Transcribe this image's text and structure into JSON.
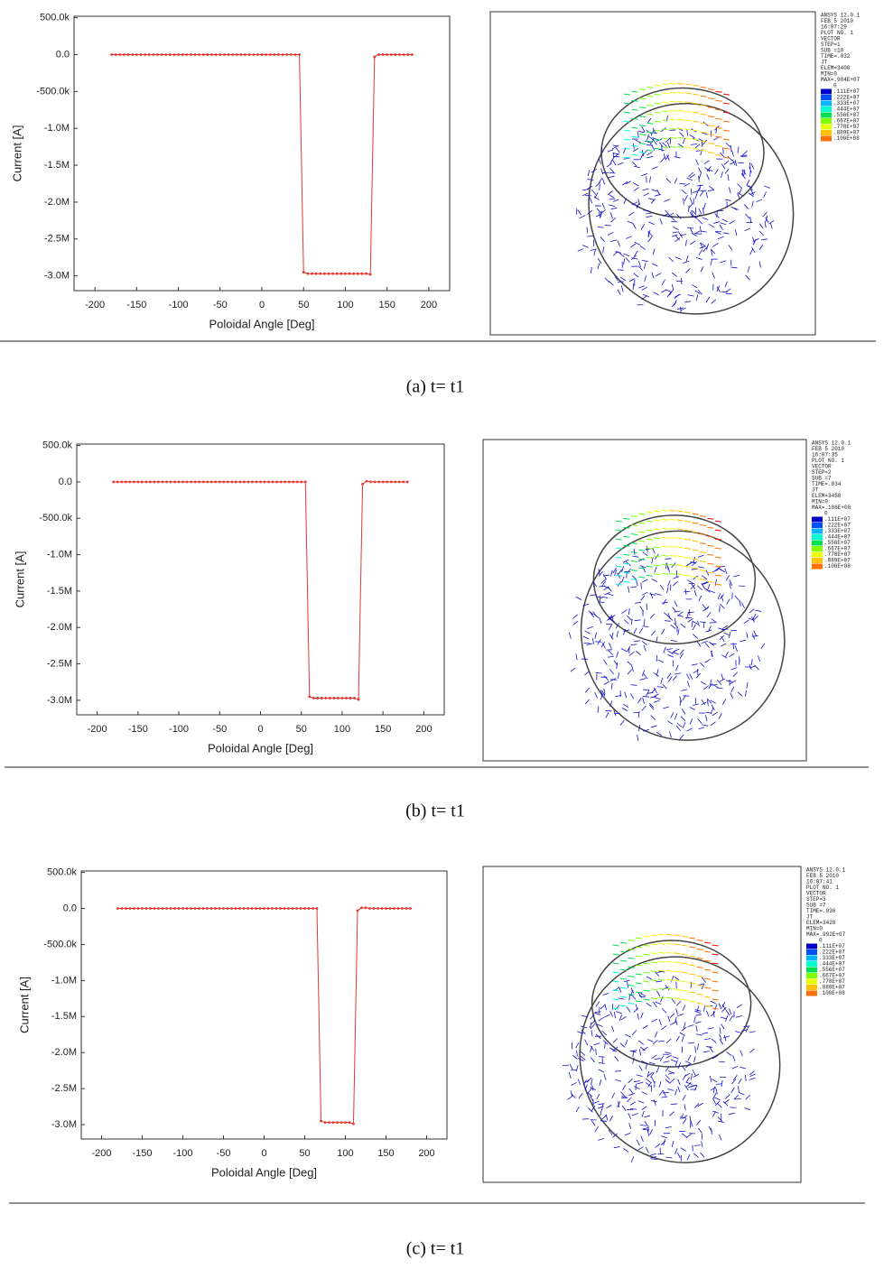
{
  "chart_data": [
    {
      "type": "line",
      "ylabel": "Current [A]",
      "xlabel": "Poloidal Angle [Deg]",
      "color": "#e8352f",
      "xlim": [
        -225,
        225
      ],
      "xticks": [
        -200,
        -150,
        -100,
        -50,
        0,
        50,
        100,
        150,
        200
      ],
      "ylim": [
        -3200000,
        520000
      ],
      "yticks": [
        {
          "value": 500000,
          "label": "500.0k"
        },
        {
          "value": 0,
          "label": "0.0"
        },
        {
          "value": -500000,
          "label": "-500.0k"
        },
        {
          "value": -1000000,
          "label": "-1.0M"
        },
        {
          "value": -1500000,
          "label": "-1.5M"
        },
        {
          "value": -2000000,
          "label": "-2.0M"
        },
        {
          "value": -2500000,
          "label": "-2.5M"
        },
        {
          "value": -3000000,
          "label": "-3.0M"
        }
      ],
      "x": [
        -180,
        -175,
        -170,
        -165,
        -160,
        -155,
        -150,
        -145,
        -140,
        -135,
        -130,
        -125,
        -120,
        -115,
        -110,
        -105,
        -100,
        -95,
        -90,
        -85,
        -80,
        -75,
        -70,
        -65,
        -60,
        -55,
        -50,
        -45,
        -40,
        -35,
        -30,
        -25,
        -20,
        -15,
        -10,
        -5,
        0,
        5,
        10,
        15,
        20,
        25,
        30,
        35,
        40,
        45,
        50,
        55,
        60,
        65,
        70,
        75,
        80,
        85,
        90,
        95,
        100,
        105,
        110,
        115,
        120,
        125,
        130,
        135,
        140,
        145,
        150,
        155,
        160,
        165,
        170,
        175,
        180
      ],
      "values": [
        0,
        0,
        0,
        0,
        0,
        0,
        0,
        0,
        0,
        0,
        0,
        0,
        0,
        0,
        0,
        0,
        0,
        0,
        0,
        0,
        0,
        0,
        0,
        0,
        0,
        0,
        0,
        0,
        0,
        0,
        0,
        0,
        0,
        0,
        0,
        0,
        0,
        0,
        0,
        0,
        0,
        0,
        0,
        0,
        0,
        0,
        -2950000,
        -2970000,
        -2970000,
        -2970000,
        -2970000,
        -2970000,
        -2970000,
        -2970000,
        -2970000,
        -2970000,
        -2970000,
        -2970000,
        -2970000,
        -2970000,
        -2970000,
        -2970000,
        -2980000,
        -30000,
        0,
        0,
        0,
        0,
        0,
        0,
        0,
        0,
        0
      ]
    },
    {
      "type": "line",
      "ylabel": "Current [A]",
      "xlabel": "Poloidal Angle [Deg]",
      "color": "#e8352f",
      "xlim": [
        -225,
        225
      ],
      "xticks": [
        -200,
        -150,
        -100,
        -50,
        0,
        50,
        100,
        150,
        200
      ],
      "ylim": [
        -3200000,
        520000
      ],
      "yticks": [
        {
          "value": 500000,
          "label": "500.0k"
        },
        {
          "value": 0,
          "label": "0.0"
        },
        {
          "value": -500000,
          "label": "-500.0k"
        },
        {
          "value": -1000000,
          "label": "-1.0M"
        },
        {
          "value": -1500000,
          "label": "-1.5M"
        },
        {
          "value": -2000000,
          "label": "-2.0M"
        },
        {
          "value": -2500000,
          "label": "-2.5M"
        },
        {
          "value": -3000000,
          "label": "-3.0M"
        }
      ],
      "x": [
        -180,
        -175,
        -170,
        -165,
        -160,
        -155,
        -150,
        -145,
        -140,
        -135,
        -130,
        -125,
        -120,
        -115,
        -110,
        -105,
        -100,
        -95,
        -90,
        -85,
        -80,
        -75,
        -70,
        -65,
        -60,
        -55,
        -50,
        -45,
        -40,
        -35,
        -30,
        -25,
        -20,
        -15,
        -10,
        -5,
        0,
        5,
        10,
        15,
        20,
        25,
        30,
        35,
        40,
        45,
        50,
        55,
        60,
        65,
        70,
        75,
        80,
        85,
        90,
        95,
        100,
        105,
        110,
        115,
        120,
        125,
        130,
        135,
        140,
        145,
        150,
        155,
        160,
        165,
        170,
        175,
        180
      ],
      "values": [
        0,
        0,
        0,
        0,
        0,
        0,
        0,
        0,
        0,
        0,
        0,
        0,
        0,
        0,
        0,
        0,
        0,
        0,
        0,
        0,
        0,
        0,
        0,
        0,
        0,
        0,
        0,
        0,
        0,
        0,
        0,
        0,
        0,
        0,
        0,
        0,
        0,
        0,
        0,
        0,
        0,
        0,
        0,
        0,
        0,
        0,
        0,
        0,
        -2950000,
        -2970000,
        -2970000,
        -2970000,
        -2970000,
        -2970000,
        -2970000,
        -2970000,
        -2970000,
        -2970000,
        -2970000,
        -2970000,
        -2990000,
        -30000,
        10000,
        0,
        0,
        0,
        0,
        0,
        0,
        0,
        0,
        0,
        0
      ]
    },
    {
      "type": "line",
      "ylabel": "Current [A]",
      "xlabel": "Poloidal Angle [Deg]",
      "color": "#e8352f",
      "xlim": [
        -225,
        225
      ],
      "xticks": [
        -200,
        -150,
        -100,
        -50,
        0,
        50,
        100,
        150,
        200
      ],
      "ylim": [
        -3200000,
        520000
      ],
      "yticks": [
        {
          "value": 500000,
          "label": "500.0k"
        },
        {
          "value": 0,
          "label": "0.0"
        },
        {
          "value": -500000,
          "label": "-500.0k"
        },
        {
          "value": -1000000,
          "label": "-1.0M"
        },
        {
          "value": -1500000,
          "label": "-1.5M"
        },
        {
          "value": -2000000,
          "label": "-2.0M"
        },
        {
          "value": -2500000,
          "label": "-2.5M"
        },
        {
          "value": -3000000,
          "label": "-3.0M"
        }
      ],
      "x": [
        -180,
        -175,
        -170,
        -165,
        -160,
        -155,
        -150,
        -145,
        -140,
        -135,
        -130,
        -125,
        -120,
        -115,
        -110,
        -105,
        -100,
        -95,
        -90,
        -85,
        -80,
        -75,
        -70,
        -65,
        -60,
        -55,
        -50,
        -45,
        -40,
        -35,
        -30,
        -25,
        -20,
        -15,
        -10,
        -5,
        0,
        5,
        10,
        15,
        20,
        25,
        30,
        35,
        40,
        45,
        50,
        55,
        60,
        65,
        70,
        75,
        80,
        85,
        90,
        95,
        100,
        105,
        110,
        115,
        120,
        125,
        130,
        135,
        140,
        145,
        150,
        155,
        160,
        165,
        170,
        175,
        180
      ],
      "values": [
        0,
        0,
        0,
        0,
        0,
        0,
        0,
        0,
        0,
        0,
        0,
        0,
        0,
        0,
        0,
        0,
        0,
        0,
        0,
        0,
        0,
        0,
        0,
        0,
        0,
        0,
        0,
        0,
        0,
        0,
        0,
        0,
        0,
        0,
        0,
        0,
        0,
        0,
        0,
        0,
        0,
        0,
        0,
        0,
        0,
        0,
        0,
        0,
        0,
        0,
        -2950000,
        -2970000,
        -2970000,
        -2970000,
        -2970000,
        -2970000,
        -2970000,
        -2970000,
        -2990000,
        -30000,
        10000,
        10000,
        0,
        0,
        0,
        0,
        0,
        0,
        0,
        0,
        0,
        0,
        0
      ]
    }
  ],
  "renderings": [
    {
      "header": [
        "ANSYS 12.0.1",
        "FEB  5 2010",
        "16:07:29",
        "PLOT NO.   1",
        "VECTOR",
        "STEP=1",
        "SUB =10",
        "TIME=.032",
        "JT",
        "ELEM=3408",
        "MIN=0",
        "MAX=.904E+07"
      ],
      "legend": [
        "0",
        ".111E+07",
        ".222E+07",
        ".333E+07",
        ".444E+07",
        ".556E+07",
        ".667E+07",
        ".778E+07",
        ".889E+07",
        ".100E+08"
      ]
    },
    {
      "header": [
        "ANSYS 12.0.1",
        "FEB  5 2010",
        "16:07:35",
        "PLOT NO.   1",
        "VECTOR",
        "STEP=2",
        "SUB =7",
        "TIME=.034",
        "JT",
        "ELEM=3458",
        "MIN=0",
        "MAX=.106E+08"
      ],
      "legend": [
        "0",
        ".111E+07",
        ".222E+07",
        ".333E+07",
        ".444E+07",
        ".556E+07",
        ".667E+07",
        ".778E+07",
        ".889E+07",
        ".100E+08"
      ]
    },
    {
      "header": [
        "ANSYS 12.0.1",
        "FEB  5 2010",
        "16:07:41",
        "PLOT NO.   1",
        "VECTOR",
        "STEP=3",
        "SUB =7",
        "TIME=.036",
        "JT",
        "ELEM=3428",
        "MIN=0",
        "MAX=.992E+07"
      ],
      "legend": [
        "0",
        ".111E+07",
        ".222E+07",
        ".333E+07",
        ".444E+07",
        ".556E+07",
        ".667E+07",
        ".778E+07",
        ".889E+07",
        ".100E+08"
      ]
    }
  ],
  "captions": [
    "(a)  t=  t1",
    "(b)  t=  t1",
    "(c)  t=  t1"
  ]
}
